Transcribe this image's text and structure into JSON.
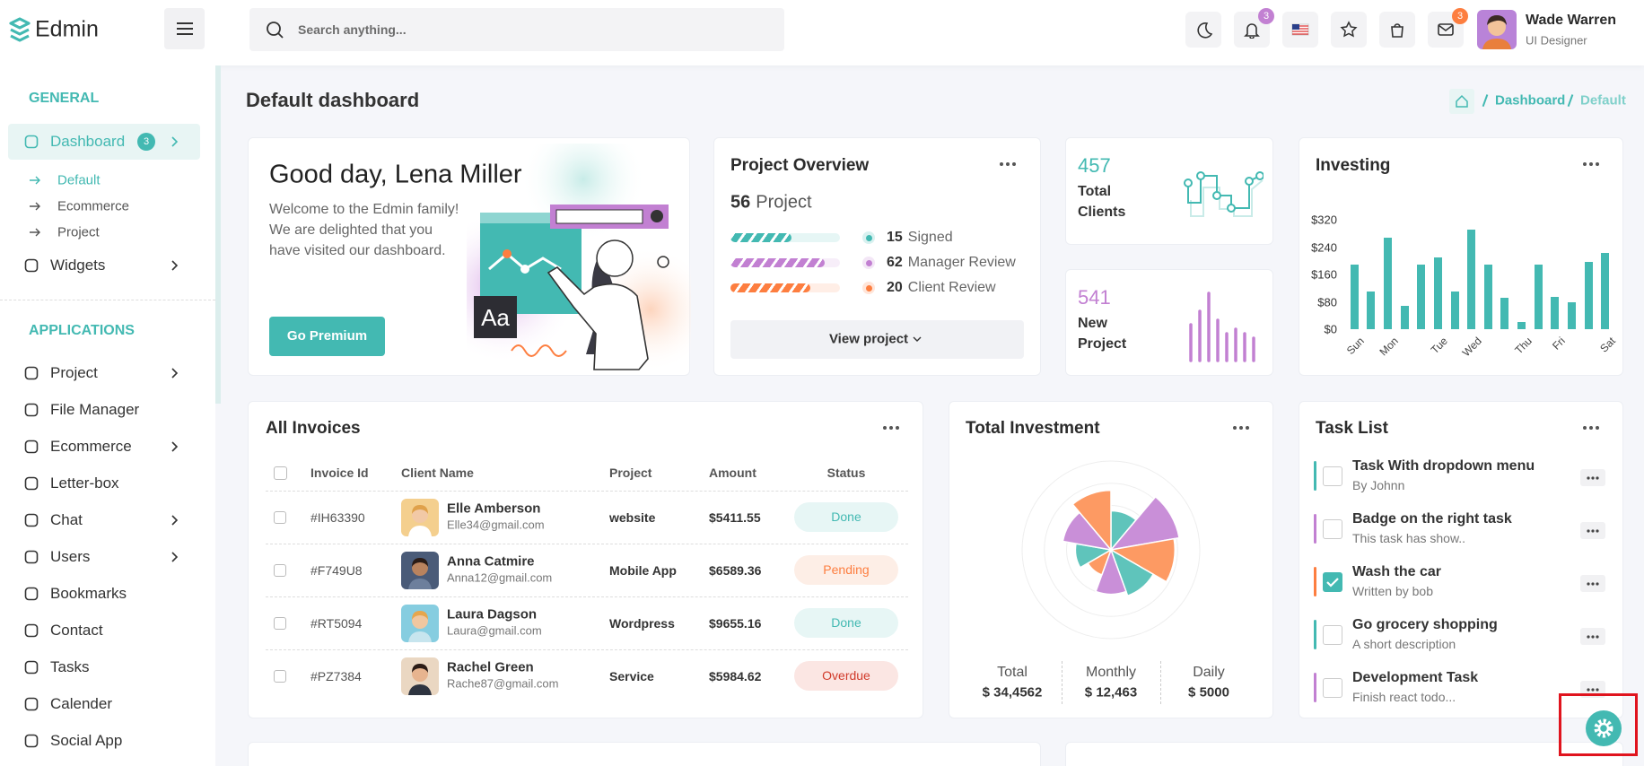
{
  "header": {
    "logo": "Edmin",
    "search_placeholder": "Search anything...",
    "notification_badge": 3,
    "mail_badge": 3,
    "user": {
      "name": "Wade Warren",
      "role": "UI Designer"
    }
  },
  "sidebar": {
    "sections": [
      {
        "title": "GENERAL",
        "items": [
          {
            "label": "Dashboard",
            "badge": 3,
            "submenu": true,
            "active": true,
            "children": [
              "Default",
              "Ecommerce",
              "Project"
            ]
          },
          {
            "label": "Widgets",
            "submenu": true
          }
        ]
      },
      {
        "title": "APPLICATIONS",
        "items": [
          {
            "label": "Project",
            "submenu": true
          },
          {
            "label": "File Manager"
          },
          {
            "label": "Ecommerce",
            "submenu": true
          },
          {
            "label": "Letter-box"
          },
          {
            "label": "Chat",
            "submenu": true
          },
          {
            "label": "Users",
            "submenu": true
          },
          {
            "label": "Bookmarks"
          },
          {
            "label": "Contact"
          },
          {
            "label": "Tasks"
          },
          {
            "label": "Calender"
          },
          {
            "label": "Social App"
          }
        ]
      }
    ]
  },
  "page": {
    "title": "Default dashboard",
    "breadcrumb": [
      "Dashboard",
      "Default"
    ]
  },
  "welcome": {
    "title": "Good day, Lena Miller",
    "lines": [
      "Welcome to the Edmin family!",
      "We are delighted that you",
      "have visited our dashboard."
    ],
    "button": "Go Premium",
    "illustration_text": "Aa"
  },
  "project_overview": {
    "title": "Project Overview",
    "count": 56,
    "count_label": "Project",
    "legend": [
      {
        "value": 15,
        "label": "Signed",
        "color": "#43b9b2"
      },
      {
        "value": 62,
        "label": "Manager Review",
        "color": "#c280d2"
      },
      {
        "value": 20,
        "label": "Client Review",
        "color": "#fd7e40"
      }
    ],
    "button": "View project"
  },
  "stats": [
    {
      "value": 457,
      "label": "Total Clients",
      "color": "#43b9b2"
    },
    {
      "value": 541,
      "label": "New Project",
      "color": "#c280d2"
    }
  ],
  "investing": {
    "title": "Investing",
    "chart": {
      "type": "bar",
      "color": "#43b9b2",
      "categories": [
        "Sun",
        null,
        "Mon",
        null,
        null,
        "Tue",
        null,
        "Wed",
        null,
        null,
        "Thu",
        null,
        "Fri",
        null,
        null,
        "Sat"
      ],
      "values": [
        188,
        111,
        268,
        68,
        188,
        209,
        111,
        290,
        188,
        92,
        22,
        188,
        95,
        80,
        197,
        222
      ],
      "ylim": [
        0,
        320
      ],
      "yticks": [
        {
          "value": 0,
          "label": "$0"
        },
        {
          "value": 80,
          "label": "$80"
        },
        {
          "value": 160,
          "label": "$160"
        },
        {
          "value": 240,
          "label": "$240"
        },
        {
          "value": 320,
          "label": "$320"
        }
      ]
    }
  },
  "invoices": {
    "title": "All Invoices",
    "columns": [
      "Invoice Id",
      "Client Name",
      "Project",
      "Amount",
      "Status"
    ],
    "rows": [
      {
        "id": "#IH63390",
        "name": "Elle Amberson",
        "email": "Elle34@gmail.com",
        "project": "website",
        "amount": "$5411.55",
        "status": "Done",
        "status_color": "#43b9b2",
        "status_bg": "#e7f6f5"
      },
      {
        "id": "#F749U8",
        "name": "Anna Catmire",
        "email": "Anna12@gmail.com",
        "project": "Mobile App",
        "amount": "$6589.36",
        "status": "Pending",
        "status_color": "#fd7e40",
        "status_bg": "#fdeee6"
      },
      {
        "id": "#RT5094",
        "name": "Laura Dagson",
        "email": "Laura@gmail.com",
        "project": "Wordpress",
        "amount": "$9655.16",
        "status": "Done",
        "status_color": "#43b9b2",
        "status_bg": "#e7f6f5"
      },
      {
        "id": "#PZ7384",
        "name": "Rachel Green",
        "email": "Rache87@gmail.com",
        "project": "Service",
        "amount": "$5984.62",
        "status": "Overdue",
        "status_color": "#d13b2b",
        "status_bg": "#fbe6e3"
      }
    ]
  },
  "total_investment": {
    "title": "Total Investment",
    "chart": {
      "type": "rose",
      "rlim": [
        0,
        100
      ],
      "values": [
        44,
        78,
        72,
        55,
        50,
        30,
        40,
        55,
        67
      ],
      "colors": [
        "#5fc4bb",
        "#c98fd8",
        "#fd9a63",
        "#5fc4bb",
        "#c98fd8",
        "#fd9a63",
        "#5fc4bb",
        "#c98fd8",
        "#fd9a63"
      ]
    },
    "stats": [
      {
        "label": "Total",
        "value": "$ 34,4562"
      },
      {
        "label": "Monthly",
        "value": "$ 12,463"
      },
      {
        "label": "Daily",
        "value": "$ 5000"
      }
    ]
  },
  "tasks": {
    "title": "Task List",
    "items": [
      {
        "title": "Task With dropdown menu",
        "subtitle": "By Johnn",
        "color": "#43b9b2",
        "done": false
      },
      {
        "title": "Badge on the right task",
        "subtitle": "This task has show..",
        "color": "#c280d2",
        "done": false
      },
      {
        "title": "Wash the car",
        "subtitle": "Written by bob",
        "color": "#fd7e40",
        "done": true
      },
      {
        "title": "Go grocery shopping",
        "subtitle": "A short description",
        "color": "#43b9b2",
        "done": false
      },
      {
        "title": "Development Task",
        "subtitle": "Finish react todo...",
        "color": "#c280d2",
        "done": false
      }
    ]
  }
}
